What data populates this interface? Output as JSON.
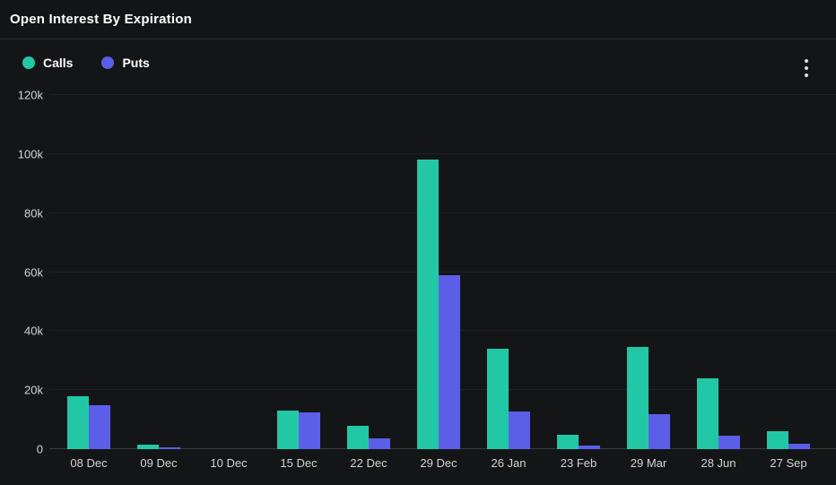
{
  "header": {
    "title": "Open Interest By Expiration"
  },
  "legend": {
    "items": [
      {
        "label": "Calls",
        "color": "#22c8a5"
      },
      {
        "label": "Puts",
        "color": "#5b5fe8"
      }
    ]
  },
  "menu": {
    "kebab_icon": "more-options"
  },
  "colors": {
    "background": "#141517",
    "header_divider": "#2b2c2e",
    "gridline": "#1f2123",
    "zero_line": "#3a3c3e",
    "axis_text": "#d3d4d5",
    "calls": "#22c8a5",
    "puts": "#5b5fe8"
  },
  "chart_data": {
    "type": "bar",
    "title": "Open Interest By Expiration",
    "categories": [
      "08 Dec",
      "09 Dec",
      "10 Dec",
      "15 Dec",
      "22 Dec",
      "29 Dec",
      "26 Jan",
      "23 Feb",
      "29 Mar",
      "28 Jun",
      "27 Sep"
    ],
    "series": [
      {
        "name": "Calls",
        "color": "#22c8a5",
        "values": [
          18000,
          1500,
          0,
          13000,
          8000,
          98000,
          34000,
          5000,
          34500,
          24000,
          6000
        ]
      },
      {
        "name": "Puts",
        "color": "#5b5fe8",
        "values": [
          15000,
          600,
          0,
          12500,
          3600,
          59000,
          12800,
          1300,
          12000,
          4700,
          1700
        ]
      }
    ],
    "xlabel": "",
    "ylabel": "",
    "ylim": [
      0,
      120000
    ],
    "yticks": [
      {
        "value": 0,
        "label": "0"
      },
      {
        "value": 20000,
        "label": "20k"
      },
      {
        "value": 40000,
        "label": "40k"
      },
      {
        "value": 60000,
        "label": "60k"
      },
      {
        "value": 80000,
        "label": "80k"
      },
      {
        "value": 100000,
        "label": "100k"
      },
      {
        "value": 120000,
        "label": "120k"
      }
    ],
    "grid": true,
    "legend_position": "top-left"
  }
}
